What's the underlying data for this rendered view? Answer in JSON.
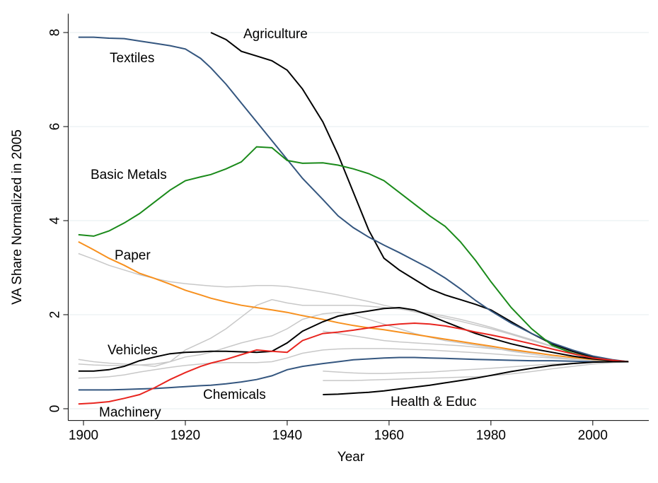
{
  "chart_data": {
    "type": "line",
    "x_label": "Year",
    "y_label": "VA Share Normalized in 2005",
    "x": [
      1899,
      1902,
      1905,
      1908,
      1911,
      1914,
      1917,
      1920,
      1923,
      1925,
      1928,
      1931,
      1934,
      1937,
      1940,
      1943,
      1947,
      1950,
      1953,
      1956,
      1959,
      1962,
      1965,
      1968,
      1971,
      1974,
      1977,
      1980,
      1984,
      1988,
      1992,
      1996,
      2000,
      2004,
      2007
    ],
    "xlim": [
      1897,
      2011
    ],
    "xticks": [
      1900,
      1920,
      1940,
      1960,
      1980,
      2000
    ],
    "ylim": [
      -0.25,
      8.4
    ],
    "yticks": [
      0,
      2,
      4,
      6,
      8
    ],
    "grid": true,
    "series": [
      {
        "color": "#c8c8c8",
        "values": [
          3.3,
          3.18,
          3.05,
          2.95,
          2.85,
          2.77,
          2.7,
          2.66,
          2.63,
          2.61,
          2.59,
          2.6,
          2.62,
          2.62,
          2.6,
          2.55,
          2.48,
          2.42,
          2.35,
          2.28,
          2.2,
          2.13,
          2.06,
          2.0,
          1.93,
          1.86,
          1.78,
          1.7,
          1.58,
          1.45,
          1.32,
          1.2,
          1.1,
          1.03,
          1.0
        ]
      },
      {
        "color": "#c8c8c8",
        "values": [
          1.05,
          1.0,
          0.97,
          0.95,
          0.93,
          0.9,
          1.0,
          1.25,
          1.4,
          1.5,
          1.7,
          1.95,
          2.2,
          2.32,
          2.25,
          2.2,
          2.2,
          2.2,
          2.2,
          2.18,
          2.15,
          2.12,
          2.08,
          2.03,
          1.97,
          1.9,
          1.82,
          1.73,
          1.6,
          1.47,
          1.33,
          1.2,
          1.1,
          1.03,
          1.0
        ]
      },
      {
        "color": "#c8c8c8",
        "values": [
          0.95,
          0.93,
          0.92,
          0.92,
          0.93,
          0.95,
          1.0,
          1.1,
          1.15,
          1.2,
          1.3,
          1.4,
          1.48,
          1.55,
          1.7,
          1.9,
          2.02,
          2.05,
          2.0,
          1.9,
          1.8,
          1.7,
          1.6,
          1.52,
          1.45,
          1.4,
          1.35,
          1.3,
          1.22,
          1.16,
          1.1,
          1.06,
          1.03,
          1.01,
          1.0
        ]
      },
      {
        "color": "#c8c8c8",
        "values": [
          0.65,
          0.66,
          0.68,
          0.72,
          0.78,
          0.83,
          0.88,
          0.92,
          0.95,
          0.97,
          0.98,
          0.98,
          0.98,
          1.0,
          1.08,
          1.18,
          1.25,
          1.27,
          1.28,
          1.28,
          1.28,
          1.27,
          1.26,
          1.25,
          1.23,
          1.21,
          1.19,
          1.17,
          1.14,
          1.11,
          1.08,
          1.05,
          1.03,
          1.01,
          1.0
        ]
      },
      {
        "color": "#c8c8c8",
        "values": [
          null,
          null,
          null,
          null,
          null,
          null,
          null,
          null,
          null,
          null,
          null,
          null,
          null,
          null,
          null,
          null,
          0.8,
          0.78,
          0.76,
          0.75,
          0.75,
          0.76,
          0.77,
          0.78,
          0.8,
          0.82,
          0.84,
          0.86,
          0.89,
          0.92,
          0.95,
          0.97,
          0.99,
          1.0,
          1.0
        ]
      },
      {
        "color": "#c8c8c8",
        "values": [
          null,
          null,
          null,
          null,
          null,
          null,
          null,
          null,
          null,
          null,
          null,
          null,
          null,
          null,
          null,
          null,
          0.6,
          0.6,
          0.6,
          0.61,
          0.62,
          0.63,
          0.64,
          0.65,
          0.66,
          0.67,
          0.68,
          0.7,
          0.74,
          0.79,
          0.85,
          0.9,
          0.95,
          0.98,
          1.0
        ]
      },
      {
        "color": "#c8c8c8",
        "values": [
          null,
          null,
          null,
          null,
          null,
          null,
          null,
          null,
          null,
          null,
          null,
          null,
          null,
          null,
          null,
          null,
          1.65,
          1.6,
          1.55,
          1.5,
          1.45,
          1.42,
          1.4,
          1.38,
          1.36,
          1.34,
          1.31,
          1.28,
          1.24,
          1.19,
          1.14,
          1.09,
          1.05,
          1.02,
          1.0
        ]
      },
      {
        "name": "Agriculture",
        "color": "#000000",
        "values": [
          null,
          null,
          null,
          null,
          null,
          null,
          null,
          null,
          null,
          8.0,
          7.85,
          7.6,
          7.5,
          7.4,
          7.2,
          6.8,
          6.1,
          5.4,
          4.6,
          3.8,
          3.2,
          2.95,
          2.75,
          2.55,
          2.42,
          2.32,
          2.22,
          2.1,
          1.85,
          1.6,
          1.38,
          1.22,
          1.1,
          1.03,
          1.0
        ]
      },
      {
        "name": "Textiles",
        "color": "#34567f",
        "values": [
          7.9,
          7.9,
          7.88,
          7.87,
          7.82,
          7.77,
          7.72,
          7.65,
          7.45,
          7.25,
          6.9,
          6.5,
          6.1,
          5.7,
          5.3,
          4.9,
          4.45,
          4.1,
          3.85,
          3.65,
          3.48,
          3.32,
          3.15,
          2.98,
          2.78,
          2.55,
          2.3,
          2.08,
          1.82,
          1.6,
          1.4,
          1.25,
          1.12,
          1.04,
          1.0
        ]
      },
      {
        "name": "Basic Metals",
        "color": "#1a8a1a",
        "values": [
          3.7,
          3.67,
          3.78,
          3.95,
          4.15,
          4.4,
          4.65,
          4.85,
          4.93,
          4.98,
          5.1,
          5.25,
          5.57,
          5.55,
          5.28,
          5.22,
          5.23,
          5.18,
          5.1,
          5.0,
          4.85,
          4.6,
          4.35,
          4.1,
          3.88,
          3.55,
          3.15,
          2.7,
          2.15,
          1.7,
          1.35,
          1.18,
          1.08,
          1.02,
          1.0
        ]
      },
      {
        "name": "Paper",
        "color": "#f7901e",
        "values": [
          3.55,
          3.38,
          3.2,
          3.05,
          2.88,
          2.77,
          2.65,
          2.52,
          2.42,
          2.35,
          2.27,
          2.2,
          2.15,
          2.1,
          2.05,
          1.98,
          1.9,
          1.83,
          1.77,
          1.72,
          1.68,
          1.63,
          1.58,
          1.53,
          1.48,
          1.43,
          1.38,
          1.33,
          1.26,
          1.2,
          1.14,
          1.09,
          1.05,
          1.02,
          1.0
        ]
      },
      {
        "name": "Vehicles",
        "color": "#000000",
        "values": [
          0.8,
          0.8,
          0.83,
          0.9,
          1.02,
          1.1,
          1.17,
          1.2,
          1.21,
          1.22,
          1.22,
          1.21,
          1.2,
          1.22,
          1.4,
          1.65,
          1.85,
          1.97,
          2.03,
          2.08,
          2.13,
          2.15,
          2.1,
          1.98,
          1.85,
          1.72,
          1.6,
          1.5,
          1.38,
          1.28,
          1.2,
          1.12,
          1.06,
          1.02,
          1.0
        ]
      },
      {
        "name": "Chemicals",
        "color": "#34567f",
        "values": [
          0.4,
          0.4,
          0.4,
          0.41,
          0.42,
          0.43,
          0.45,
          0.47,
          0.49,
          0.5,
          0.53,
          0.57,
          0.62,
          0.7,
          0.83,
          0.9,
          0.96,
          1.0,
          1.04,
          1.06,
          1.08,
          1.09,
          1.09,
          1.08,
          1.07,
          1.06,
          1.05,
          1.04,
          1.03,
          1.02,
          1.02,
          1.01,
          1.0,
          1.0,
          1.0
        ]
      },
      {
        "name": "Machinery",
        "color": "#e8251f",
        "values": [
          0.1,
          0.12,
          0.15,
          0.22,
          0.3,
          0.45,
          0.62,
          0.77,
          0.9,
          0.97,
          1.05,
          1.15,
          1.25,
          1.22,
          1.2,
          1.45,
          1.6,
          1.63,
          1.67,
          1.72,
          1.77,
          1.8,
          1.82,
          1.8,
          1.76,
          1.7,
          1.63,
          1.57,
          1.48,
          1.38,
          1.27,
          1.17,
          1.08,
          1.03,
          1.0
        ]
      },
      {
        "name": "Health & Educ",
        "color": "#000000",
        "values": [
          null,
          null,
          null,
          null,
          null,
          null,
          null,
          null,
          null,
          null,
          null,
          null,
          null,
          null,
          null,
          null,
          0.3,
          0.31,
          0.33,
          0.35,
          0.38,
          0.42,
          0.46,
          0.5,
          0.55,
          0.6,
          0.65,
          0.71,
          0.79,
          0.86,
          0.92,
          0.96,
          0.99,
          1.0,
          1.0
        ]
      }
    ]
  }
}
